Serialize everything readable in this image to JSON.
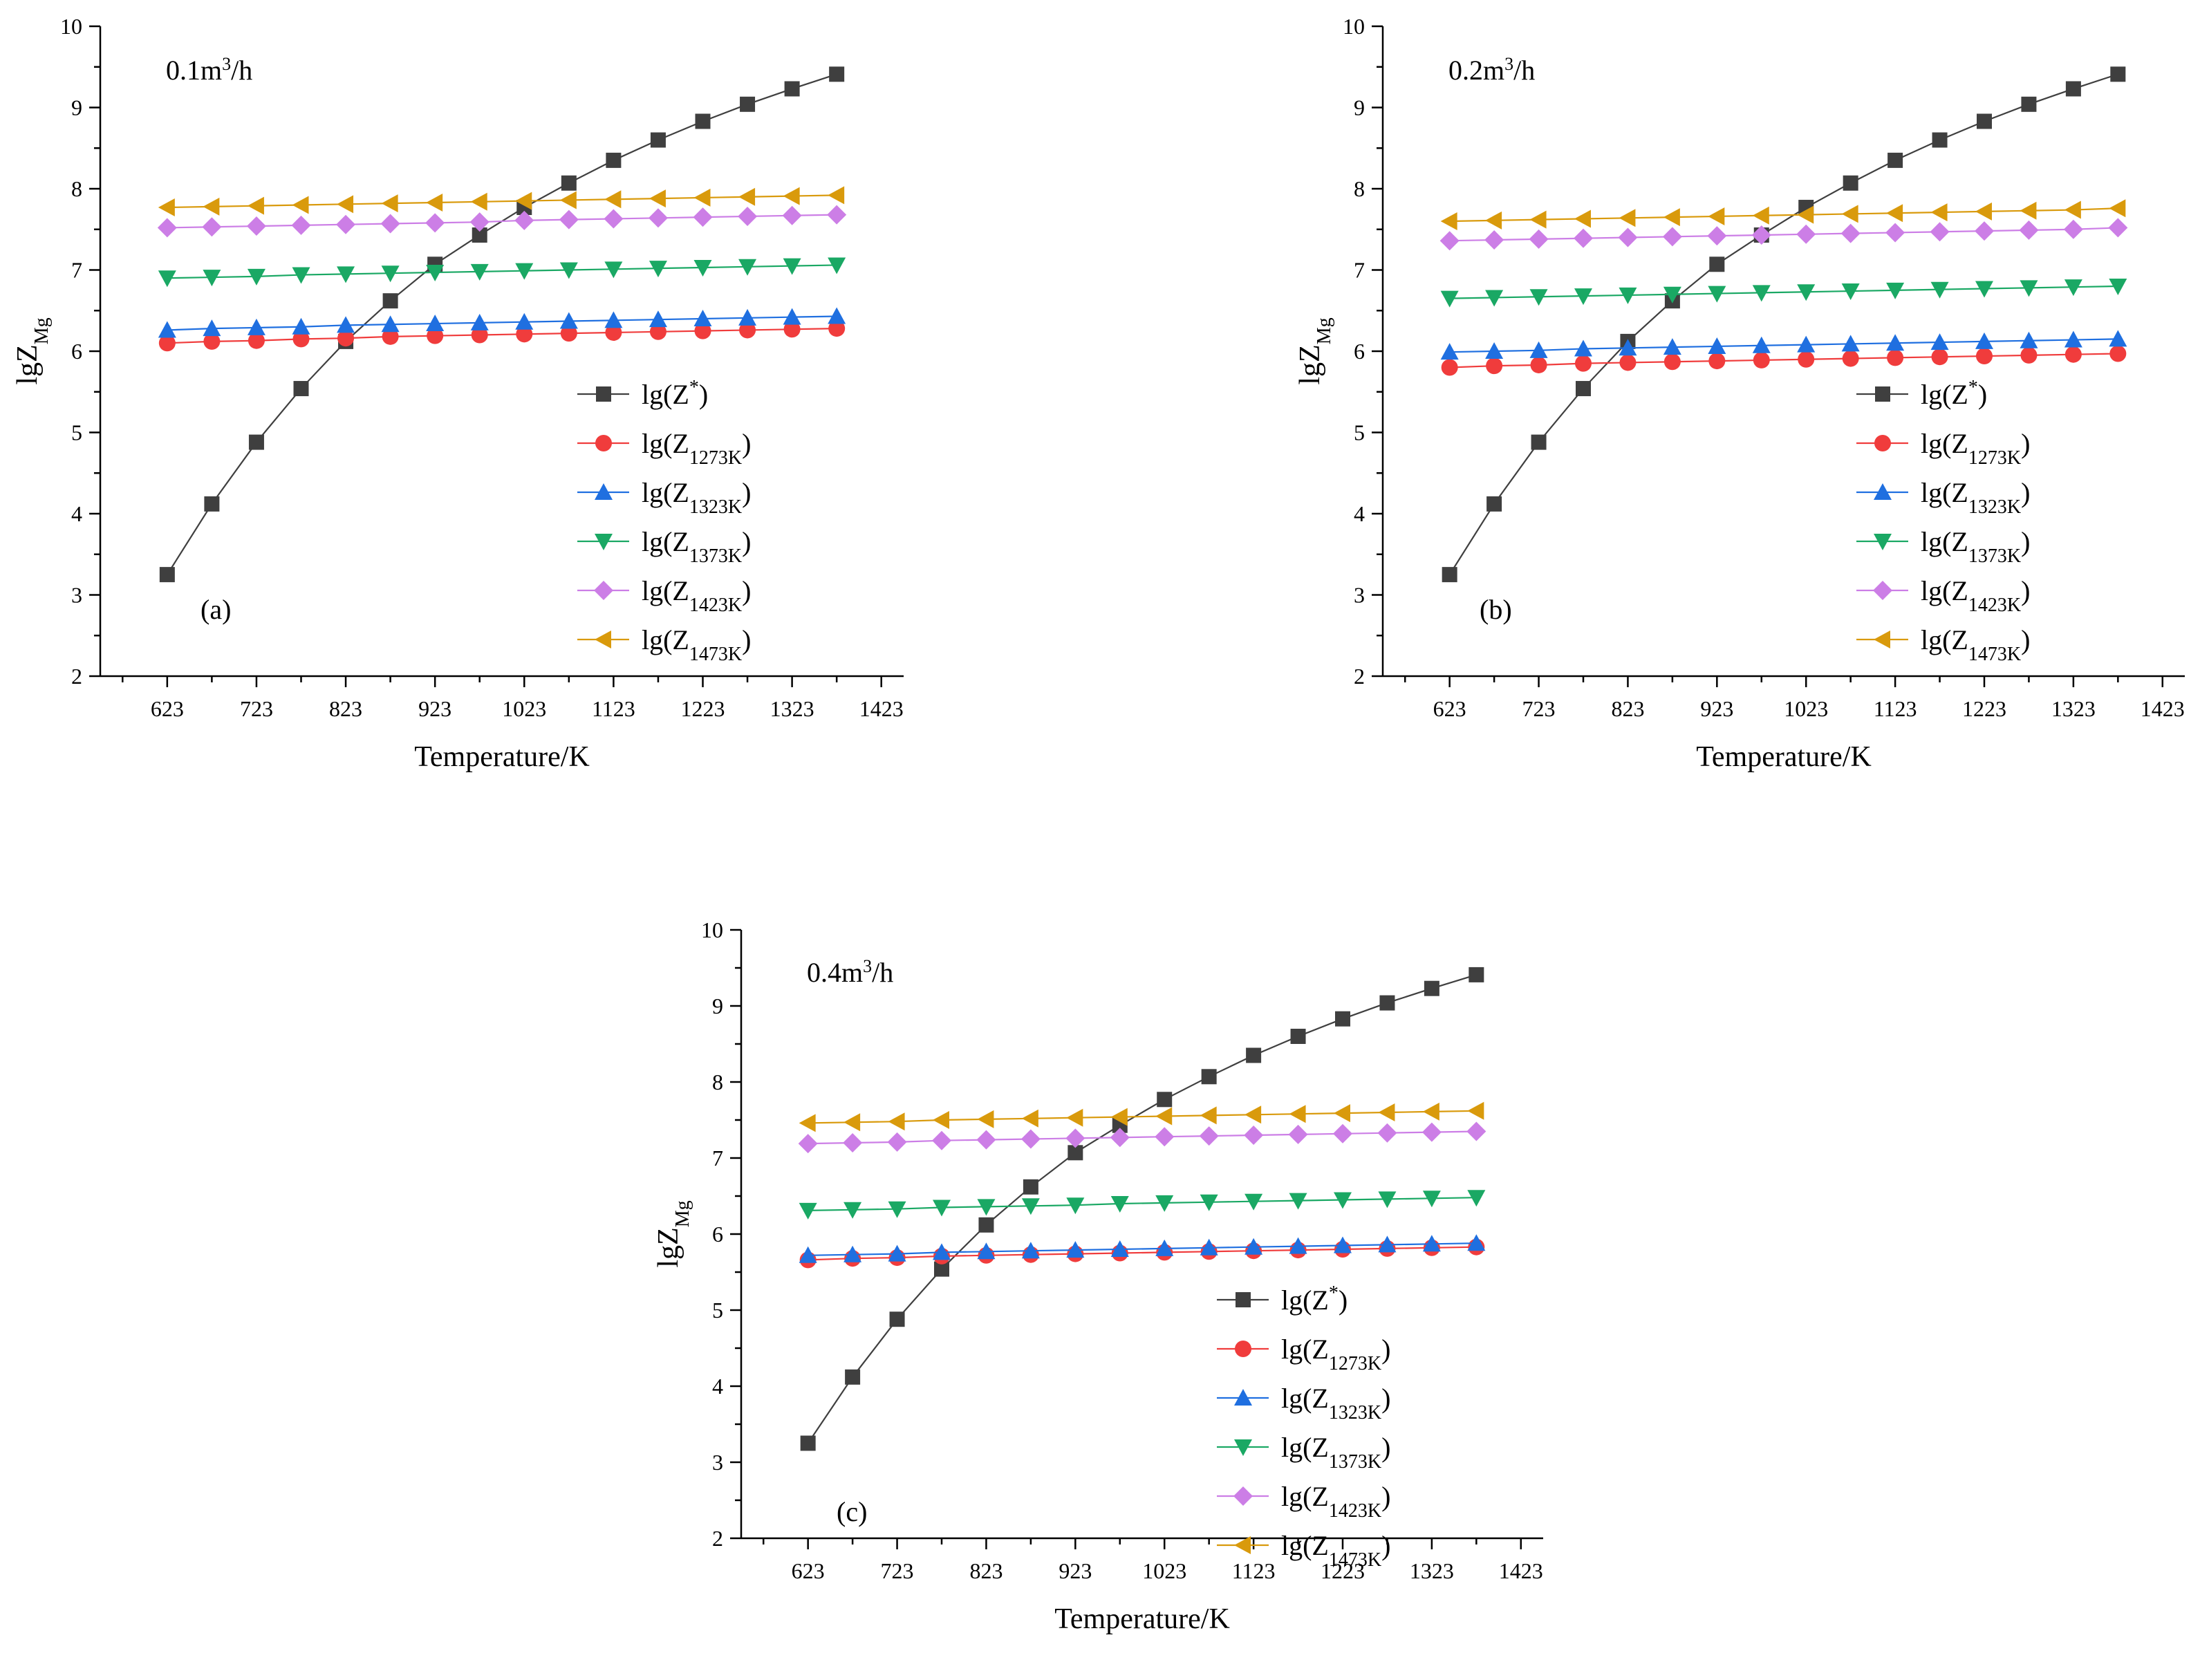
{
  "figure": {
    "panel_count": 3
  },
  "common": {
    "x_label": "Temperature/K",
    "y_label_main": "lgZ",
    "y_label_sub": "Mg",
    "x_ticks": [
      623,
      723,
      823,
      923,
      1023,
      1123,
      1223,
      1323,
      1423
    ],
    "y_ticks": [
      2,
      3,
      4,
      5,
      6,
      7,
      8,
      9,
      10
    ],
    "legend": [
      {
        "key": "zstar",
        "prefix": "lg(Z",
        "sub": "",
        "sup": "*",
        "suffix": ")",
        "color": "#3f3f3f",
        "marker": "square"
      },
      {
        "key": "z1273",
        "prefix": "lg(Z",
        "sub": "1273K",
        "sup": "",
        "suffix": ")",
        "color": "#f03c3c",
        "marker": "circle"
      },
      {
        "key": "z1323",
        "prefix": "lg(Z",
        "sub": "1323K",
        "sup": "",
        "suffix": ")",
        "color": "#1f6fe0",
        "marker": "triangle-up"
      },
      {
        "key": "z1373",
        "prefix": "lg(Z",
        "sub": "1373K",
        "sup": "",
        "suffix": ")",
        "color": "#1aa864",
        "marker": "triangle-down"
      },
      {
        "key": "z1423",
        "prefix": "lg(Z",
        "sub": "1423K",
        "sup": "",
        "suffix": ")",
        "color": "#cc7ee6",
        "marker": "diamond"
      },
      {
        "key": "z1473",
        "prefix": "lg(Z",
        "sub": "1473K",
        "sup": "",
        "suffix": ")",
        "color": "#d99a0c",
        "marker": "triangle-left"
      }
    ]
  },
  "chart_data": [
    {
      "type": "line",
      "panel_label": "(a)",
      "flow_text": "0.1m",
      "flow_sup": "3",
      "flow_unit": "/h",
      "xlabel": "Temperature/K",
      "ylabel": "lgZMg",
      "xlim": [
        548,
        1448
      ],
      "ylim": [
        2,
        10
      ],
      "x": [
        623,
        673,
        723,
        773,
        823,
        873,
        923,
        973,
        1023,
        1073,
        1123,
        1173,
        1223,
        1273,
        1323,
        1373
      ],
      "series": [
        {
          "name": "lg(Z*)",
          "values": [
            3.25,
            4.12,
            4.88,
            5.54,
            6.12,
            6.62,
            7.07,
            7.43,
            7.77,
            8.07,
            8.35,
            8.6,
            8.83,
            9.04,
            9.23,
            9.41
          ]
        },
        {
          "name": "lg(Z1273K)",
          "values": [
            6.1,
            6.12,
            6.13,
            6.15,
            6.16,
            6.18,
            6.19,
            6.2,
            6.21,
            6.22,
            6.23,
            6.24,
            6.25,
            6.26,
            6.27,
            6.28
          ]
        },
        {
          "name": "lg(Z1323K)",
          "values": [
            6.26,
            6.28,
            6.29,
            6.3,
            6.32,
            6.33,
            6.34,
            6.35,
            6.36,
            6.37,
            6.38,
            6.39,
            6.4,
            6.41,
            6.42,
            6.43
          ]
        },
        {
          "name": "lg(Z1373K)",
          "values": [
            6.9,
            6.91,
            6.92,
            6.94,
            6.95,
            6.96,
            6.97,
            6.98,
            6.99,
            7.0,
            7.01,
            7.02,
            7.03,
            7.04,
            7.05,
            7.06
          ]
        },
        {
          "name": "lg(Z1423K)",
          "values": [
            7.52,
            7.53,
            7.54,
            7.55,
            7.56,
            7.57,
            7.58,
            7.59,
            7.61,
            7.62,
            7.63,
            7.64,
            7.65,
            7.66,
            7.67,
            7.68
          ]
        },
        {
          "name": "lg(Z1473K)",
          "values": [
            7.77,
            7.78,
            7.79,
            7.8,
            7.81,
            7.82,
            7.83,
            7.84,
            7.85,
            7.86,
            7.87,
            7.88,
            7.89,
            7.9,
            7.91,
            7.92
          ]
        }
      ]
    },
    {
      "type": "line",
      "panel_label": "(b)",
      "flow_text": "0.2m",
      "flow_sup": "3",
      "flow_unit": "/h",
      "xlabel": "Temperature/K",
      "ylabel": "lgZMg",
      "xlim": [
        548,
        1448
      ],
      "ylim": [
        2,
        10
      ],
      "x": [
        623,
        673,
        723,
        773,
        823,
        873,
        923,
        973,
        1023,
        1073,
        1123,
        1173,
        1223,
        1273,
        1323,
        1373
      ],
      "series": [
        {
          "name": "lg(Z*)",
          "values": [
            3.25,
            4.12,
            4.88,
            5.54,
            6.12,
            6.62,
            7.07,
            7.43,
            7.77,
            8.07,
            8.35,
            8.6,
            8.83,
            9.04,
            9.23,
            9.41
          ]
        },
        {
          "name": "lg(Z1273K)",
          "values": [
            5.8,
            5.82,
            5.83,
            5.85,
            5.86,
            5.87,
            5.88,
            5.89,
            5.9,
            5.91,
            5.92,
            5.93,
            5.94,
            5.95,
            5.96,
            5.97
          ]
        },
        {
          "name": "lg(Z1323K)",
          "values": [
            5.99,
            6.0,
            6.01,
            6.03,
            6.04,
            6.05,
            6.06,
            6.07,
            6.08,
            6.09,
            6.1,
            6.11,
            6.12,
            6.13,
            6.14,
            6.15
          ]
        },
        {
          "name": "lg(Z1373K)",
          "values": [
            6.65,
            6.66,
            6.67,
            6.68,
            6.69,
            6.7,
            6.71,
            6.72,
            6.73,
            6.74,
            6.75,
            6.76,
            6.77,
            6.78,
            6.79,
            6.8
          ]
        },
        {
          "name": "lg(Z1423K)",
          "values": [
            7.36,
            7.37,
            7.38,
            7.39,
            7.4,
            7.41,
            7.42,
            7.43,
            7.44,
            7.45,
            7.46,
            7.47,
            7.48,
            7.49,
            7.5,
            7.52
          ]
        },
        {
          "name": "lg(Z1473K)",
          "values": [
            7.6,
            7.61,
            7.62,
            7.63,
            7.64,
            7.65,
            7.66,
            7.67,
            7.68,
            7.69,
            7.7,
            7.71,
            7.72,
            7.73,
            7.74,
            7.76
          ]
        }
      ]
    },
    {
      "type": "line",
      "panel_label": "(c)",
      "flow_text": "0.4m",
      "flow_sup": "3",
      "flow_unit": "/h",
      "xlabel": "Temperature/K",
      "ylabel": "lgZMg",
      "xlim": [
        548,
        1448
      ],
      "ylim": [
        2,
        10
      ],
      "x": [
        623,
        673,
        723,
        773,
        823,
        873,
        923,
        973,
        1023,
        1073,
        1123,
        1173,
        1223,
        1273,
        1323,
        1373
      ],
      "series": [
        {
          "name": "lg(Z*)",
          "values": [
            3.25,
            4.12,
            4.88,
            5.54,
            6.12,
            6.62,
            7.07,
            7.43,
            7.77,
            8.07,
            8.35,
            8.6,
            8.83,
            9.04,
            9.23,
            9.41
          ]
        },
        {
          "name": "lg(Z1273K)",
          "values": [
            5.66,
            5.68,
            5.69,
            5.71,
            5.72,
            5.73,
            5.74,
            5.75,
            5.76,
            5.77,
            5.78,
            5.79,
            5.8,
            5.81,
            5.82,
            5.83
          ]
        },
        {
          "name": "lg(Z1323K)",
          "values": [
            5.72,
            5.73,
            5.74,
            5.76,
            5.77,
            5.78,
            5.79,
            5.8,
            5.81,
            5.82,
            5.83,
            5.84,
            5.85,
            5.86,
            5.87,
            5.88
          ]
        },
        {
          "name": "lg(Z1373K)",
          "values": [
            6.31,
            6.32,
            6.33,
            6.35,
            6.36,
            6.37,
            6.38,
            6.4,
            6.41,
            6.42,
            6.43,
            6.44,
            6.45,
            6.46,
            6.47,
            6.48
          ]
        },
        {
          "name": "lg(Z1423K)",
          "values": [
            7.19,
            7.2,
            7.21,
            7.23,
            7.24,
            7.25,
            7.26,
            7.27,
            7.28,
            7.29,
            7.3,
            7.31,
            7.32,
            7.33,
            7.34,
            7.35
          ]
        },
        {
          "name": "lg(Z1473K)",
          "values": [
            7.46,
            7.47,
            7.48,
            7.5,
            7.51,
            7.52,
            7.53,
            7.54,
            7.55,
            7.56,
            7.57,
            7.58,
            7.59,
            7.6,
            7.61,
            7.62
          ]
        }
      ]
    }
  ]
}
